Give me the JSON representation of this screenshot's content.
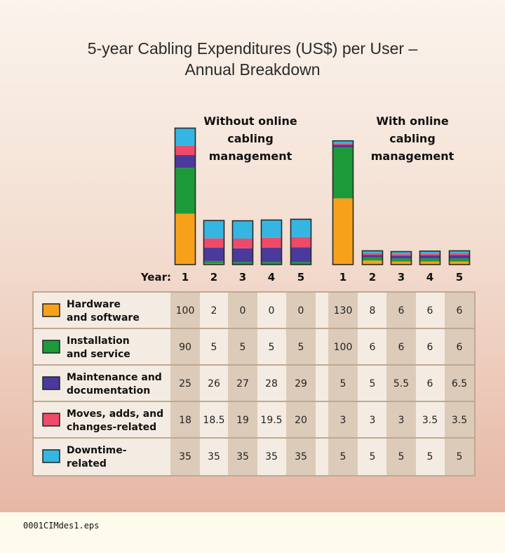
{
  "chart_data": {
    "type": "bar",
    "stacked": true,
    "title": "5-year Cabling Expenditures (US$) per User – Annual Breakdown",
    "title_lines": [
      "5-year Cabling Expenditures (US$) per User –",
      "Annual Breakdown"
    ],
    "x_axis_label": "Year:",
    "categories": [
      "1",
      "2",
      "3",
      "4",
      "5"
    ],
    "groups": [
      {
        "name": "Without online cabling management",
        "name_lines": [
          "Without online",
          "cabling",
          "management"
        ]
      },
      {
        "name": "With online cabling management",
        "name_lines": [
          "With online",
          "cabling",
          "management"
        ]
      }
    ],
    "series": [
      {
        "name": "Hardware and software",
        "label_lines": [
          "Hardware",
          "and software"
        ],
        "color": "#f7a11a",
        "values": [
          [
            100,
            2,
            0,
            0,
            0
          ],
          [
            130,
            8,
            6,
            6,
            6
          ]
        ],
        "labels": [
          [
            "100",
            "2",
            "0",
            "0",
            "0"
          ],
          [
            "130",
            "8",
            "6",
            "6",
            "6"
          ]
        ]
      },
      {
        "name": "Installation and service",
        "label_lines": [
          "Installation",
          "and service"
        ],
        "color": "#1c9a3a",
        "values": [
          [
            90,
            5,
            5,
            5,
            5
          ],
          [
            100,
            6,
            6,
            6,
            6
          ]
        ],
        "labels": [
          [
            "90",
            "5",
            "5",
            "5",
            "5"
          ],
          [
            "100",
            "6",
            "6",
            "6",
            "6"
          ]
        ]
      },
      {
        "name": "Maintenance and documentation",
        "label_lines": [
          "Maintenance and",
          "documentation"
        ],
        "color": "#4a3a9c",
        "values": [
          [
            25,
            26,
            27,
            28,
            29
          ],
          [
            5,
            5,
            5.5,
            6,
            6.5
          ]
        ],
        "labels": [
          [
            "25",
            "26",
            "27",
            "28",
            "29"
          ],
          [
            "5",
            "5",
            "5.5",
            "6",
            "6.5"
          ]
        ]
      },
      {
        "name": "Moves, adds, and changes-related",
        "label_lines": [
          "Moves, adds, and",
          "changes-related"
        ],
        "color": "#ee4a6a",
        "values": [
          [
            18,
            18.5,
            19,
            19.5,
            20
          ],
          [
            3,
            3,
            3,
            3.5,
            3.5
          ]
        ],
        "labels": [
          [
            "18",
            "18.5",
            "19",
            "19.5",
            "20"
          ],
          [
            "3",
            "3",
            "3",
            "3.5",
            "3.5"
          ]
        ]
      },
      {
        "name": "Downtime-related",
        "label_lines": [
          "Downtime-",
          "related"
        ],
        "color": "#35b6e2",
        "values": [
          [
            35,
            35,
            35,
            35,
            35
          ],
          [
            5,
            5,
            5,
            5,
            5
          ]
        ],
        "labels": [
          [
            "35",
            "35",
            "35",
            "35",
            "35"
          ],
          [
            "5",
            "5",
            "5",
            "5",
            "5"
          ]
        ]
      }
    ]
  },
  "footer": {
    "filename": "0001CIMdes1.eps"
  }
}
